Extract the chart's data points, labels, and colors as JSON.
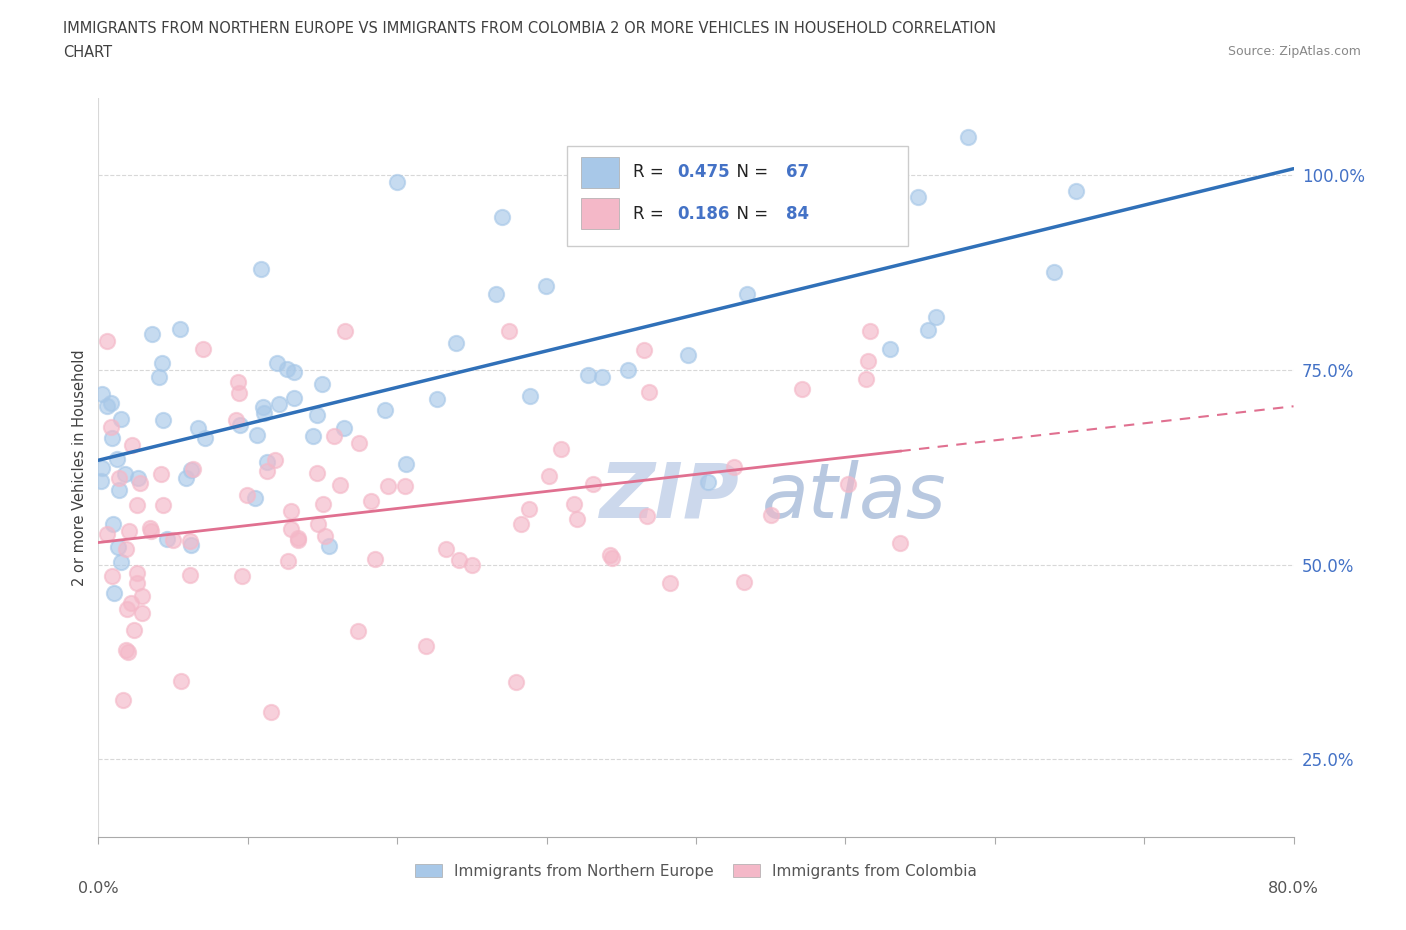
{
  "title_line1": "IMMIGRANTS FROM NORTHERN EUROPE VS IMMIGRANTS FROM COLOMBIA 2 OR MORE VEHICLES IN HOUSEHOLD CORRELATION",
  "title_line2": "CHART",
  "source": "Source: ZipAtlas.com",
  "xmin": 0.0,
  "xmax": 80.0,
  "ymin": 15.0,
  "ymax": 110.0,
  "ylabel_ticks": [
    25.0,
    50.0,
    75.0,
    100.0
  ],
  "xticks": [
    0,
    10,
    20,
    30,
    40,
    50,
    60,
    70,
    80
  ],
  "legend_1_label": "Immigrants from Northern Europe",
  "legend_2_label": "Immigrants from Colombia",
  "R1": 0.475,
  "N1": 67,
  "R2": 0.186,
  "N2": 84,
  "color_blue": "#a8c8e8",
  "color_pink": "#f4b8c8",
  "trendline_blue": "#3070b8",
  "trendline_pink": "#e07090",
  "axis_label_color": "#4472c6",
  "title_color": "#404040",
  "source_color": "#888888",
  "grid_color": "#d8d8d8",
  "watermark_color": "#ccd8ec",
  "legend_text_black": "#222222",
  "legend_text_blue": "#4472c6"
}
